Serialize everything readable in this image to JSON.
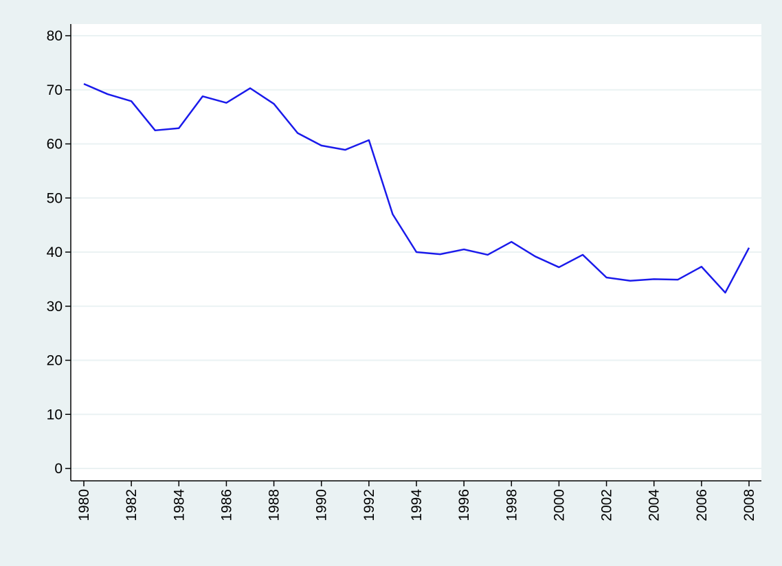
{
  "chart_data": {
    "type": "line",
    "x": [
      1980,
      1981,
      1982,
      1983,
      1984,
      1985,
      1986,
      1987,
      1988,
      1989,
      1990,
      1991,
      1992,
      1993,
      1994,
      1995,
      1996,
      1997,
      1998,
      1999,
      2000,
      2001,
      2002,
      2003,
      2004,
      2005,
      2006,
      2007,
      2008
    ],
    "series": [
      {
        "color": "#1a1aeb",
        "values": [
          71.1,
          69.2,
          67.9,
          62.5,
          62.9,
          68.8,
          67.6,
          70.3,
          67.4,
          62.0,
          59.7,
          58.9,
          60.7,
          47.0,
          40.0,
          39.6,
          40.5,
          39.5,
          41.9,
          39.2,
          37.2,
          39.5,
          35.3,
          34.7,
          35.0,
          34.9,
          37.3,
          32.5,
          40.8
        ]
      }
    ],
    "xlim": [
      1980,
      2008
    ],
    "xticks": [
      1980,
      1982,
      1984,
      1986,
      1988,
      1990,
      1992,
      1994,
      1996,
      1998,
      2000,
      2002,
      2004,
      2006,
      2008
    ],
    "ylim": [
      0,
      80
    ],
    "yticks": [
      0,
      10,
      20,
      30,
      40,
      50,
      60,
      70,
      80
    ],
    "grid": true
  }
}
